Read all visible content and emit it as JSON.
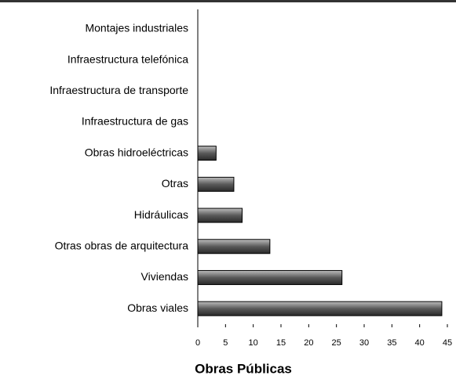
{
  "chart_data": {
    "type": "bar",
    "orientation": "horizontal",
    "title": "Obras Públicas",
    "categories": [
      "Montajes industriales",
      "Infraestructura telefónica",
      "Infraestructura de transporte",
      "Infraestructura de gas",
      "Obras hidroeléctricas",
      "Otras",
      "Hidráulicas",
      "Otras obras de arquitectura",
      "Viviendas",
      "Obras viales"
    ],
    "values": [
      0,
      0,
      0,
      0,
      3.3,
      6.5,
      8,
      13,
      26,
      44
    ],
    "color": "#6e6e6e",
    "xlim": [
      0,
      45
    ],
    "xticks": [
      0,
      5,
      10,
      15,
      20,
      25,
      30,
      35,
      40,
      45
    ]
  }
}
